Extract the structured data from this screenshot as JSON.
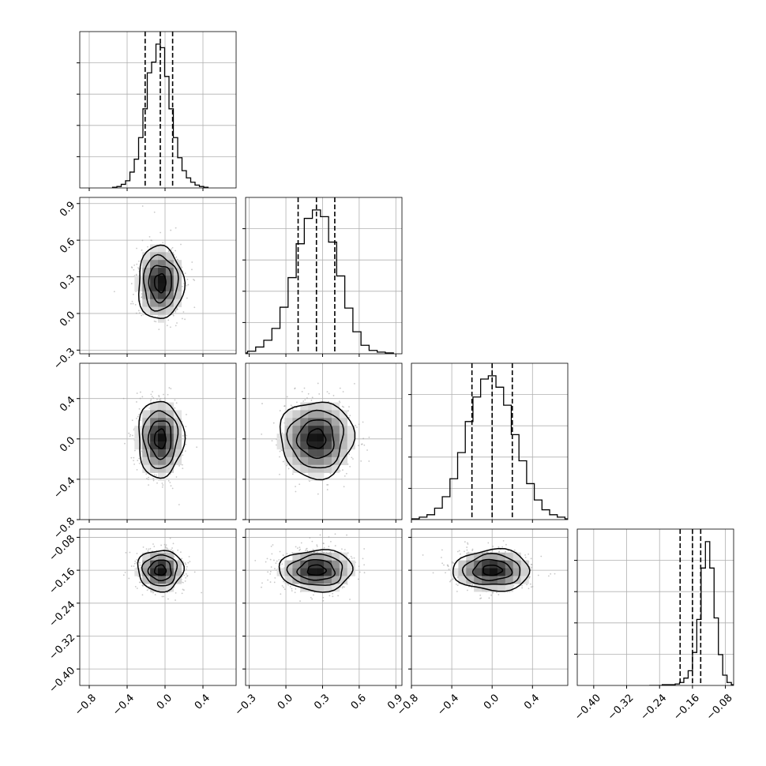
{
  "chart_data": {
    "type": "corner",
    "params": [
      {
        "key": "p0",
        "range": [
          -0.9,
          0.75
        ],
        "ticks": [
          -0.8,
          -0.4,
          0.0,
          0.4
        ],
        "tick_labels": [
          "−0.8",
          "−0.4",
          "0.0",
          "0.4"
        ],
        "quantiles": [
          -0.21,
          -0.05,
          0.08
        ],
        "mean": -0.05,
        "sd": 0.12,
        "hist": [
          1,
          2,
          5,
          10,
          22,
          40,
          70,
          110,
          160,
          175,
          200,
          195,
          155,
          110,
          70,
          42,
          24,
          14,
          8,
          4,
          2,
          1
        ]
      },
      {
        "key": "p1",
        "range": [
          -0.33,
          0.95
        ],
        "ticks": [
          -0.3,
          0.0,
          0.3,
          0.6,
          0.9
        ],
        "tick_labels": [
          "−0.3",
          "0.0",
          "0.3",
          "0.6",
          "0.9"
        ],
        "quantiles": [
          0.1,
          0.25,
          0.4
        ],
        "mean": 0.25,
        "sd": 0.15,
        "hist": [
          1,
          3,
          8,
          16,
          30,
          55,
          90,
          130,
          160,
          170,
          162,
          132,
          92,
          54,
          26,
          10,
          4,
          2,
          1
        ]
      },
      {
        "key": "p2",
        "range": [
          -0.8,
          0.75
        ],
        "ticks": [
          -0.8,
          -0.4,
          0.0,
          0.4
        ],
        "tick_labels": [
          "−0.8",
          "−0.4",
          "0.0",
          "0.4"
        ],
        "quantiles": [
          -0.2,
          0.0,
          0.2
        ],
        "mean": 0.0,
        "sd": 0.19,
        "hist": [
          1,
          3,
          6,
          14,
          28,
          50,
          82,
          120,
          150,
          172,
          176,
          162,
          140,
          104,
          72,
          44,
          24,
          12,
          6,
          3,
          1
        ]
      },
      {
        "key": "p3",
        "range": [
          -0.44,
          -0.06
        ],
        "ticks": [
          -0.4,
          -0.32,
          -0.24,
          -0.16,
          -0.08
        ],
        "tick_labels": [
          "−0.40",
          "−0.32",
          "−0.24",
          "−0.16",
          "−0.08"
        ],
        "quantiles": [
          -0.19,
          -0.16,
          -0.14
        ],
        "mean": -0.16,
        "sd": 0.025,
        "hist": [
          0,
          0,
          0,
          1,
          1,
          1,
          2,
          4,
          10,
          20,
          45,
          90,
          160,
          196,
          160,
          92,
          42,
          14,
          4,
          1
        ]
      }
    ],
    "contour_levels": [
      "0.5σ",
      "1σ",
      "1.5σ",
      "2σ"
    ],
    "grid": true,
    "line_color": "#000000",
    "grid_color": "#b0b0b0",
    "point_color": "#9a9a9a"
  }
}
